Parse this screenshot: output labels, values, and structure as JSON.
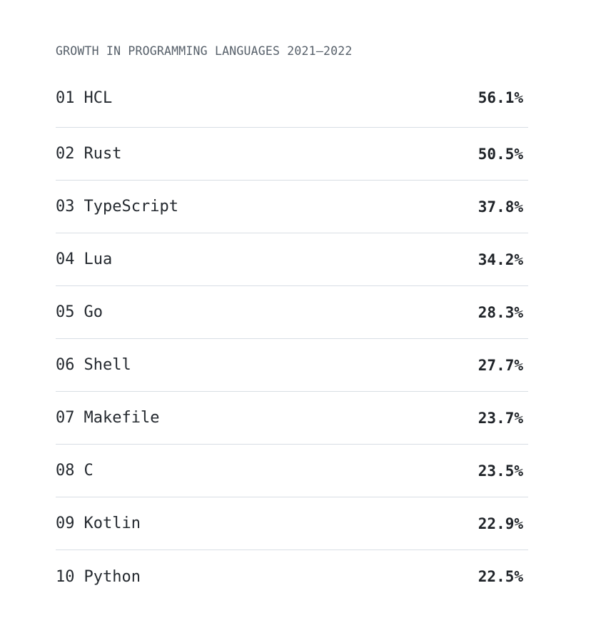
{
  "title": "GROWTH IN PROGRAMMING LANGUAGES 2021–2022",
  "rows": [
    {
      "rank": "01",
      "name": "HCL",
      "value": "56.1%"
    },
    {
      "rank": "02",
      "name": "Rust",
      "value": "50.5%"
    },
    {
      "rank": "03",
      "name": "TypeScript",
      "value": "37.8%"
    },
    {
      "rank": "04",
      "name": "Lua",
      "value": "34.2%"
    },
    {
      "rank": "05",
      "name": "Go",
      "value": "28.3%"
    },
    {
      "rank": "06",
      "name": "Shell",
      "value": "27.7%"
    },
    {
      "rank": "07",
      "name": "Makefile",
      "value": "23.7%"
    },
    {
      "rank": "08",
      "name": "C",
      "value": "23.5%"
    },
    {
      "rank": "09",
      "name": "Kotlin",
      "value": "22.9%"
    },
    {
      "rank": "10",
      "name": "Python",
      "value": "22.5%"
    }
  ]
}
